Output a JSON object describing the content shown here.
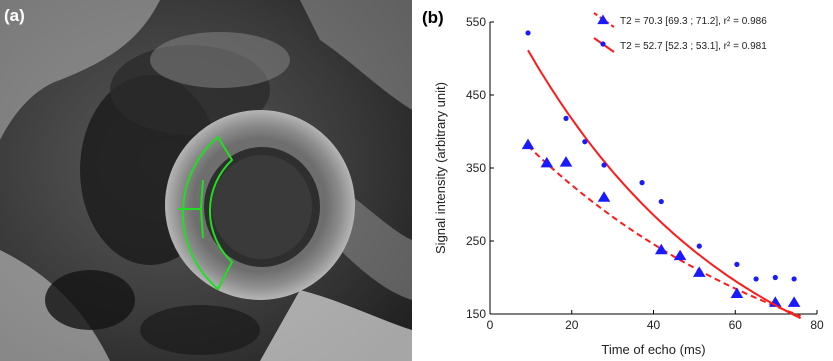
{
  "panels": {
    "a_label": "(a)",
    "b_label": "(b)"
  },
  "colors": {
    "data_points": "#1a1aff",
    "fit_lines": "#ff1a1a",
    "roi_outline": "#22dd22"
  },
  "chart_data": {
    "type": "scatter",
    "xlabel": "Time of echo (ms)",
    "ylabel": "Signal intensity (arbitrary unit)",
    "xlim": [
      0,
      80
    ],
    "ylim": [
      150,
      550
    ],
    "xticks": [
      0,
      20,
      40,
      60,
      80
    ],
    "yticks": [
      150,
      250,
      350,
      450,
      550
    ],
    "grid": false,
    "legend_position": "top-right",
    "series": [
      {
        "name": "T2 = 70.3 [69.3 ; 71.2], r² = 0.986",
        "marker": "triangle",
        "fit_style": "dashed",
        "x": [
          9.3,
          13.9,
          18.6,
          27.9,
          41.9,
          46.5,
          51.2,
          60.4,
          69.8,
          74.4
        ],
        "y": [
          382,
          357,
          358,
          310,
          238,
          230,
          207,
          178,
          166,
          166
        ],
        "fit": {
          "model": "exponential",
          "amplitude": 434,
          "T2": 70.3,
          "x_range": [
            9.3,
            76
          ]
        }
      },
      {
        "name": "T2 = 52.7 [52.3 ; 53.1], r² = 0.981",
        "marker": "dot",
        "fit_style": "solid",
        "x": [
          9.3,
          18.6,
          23.2,
          27.9,
          37.2,
          41.9,
          51.2,
          60.4,
          65.1,
          69.8,
          74.4
        ],
        "y": [
          535,
          418,
          386,
          354,
          330,
          304,
          243,
          218,
          198,
          200,
          198
        ],
        "fit": {
          "model": "exponential",
          "amplitude": 610,
          "T2": 52.7,
          "x_range": [
            9.3,
            76
          ]
        }
      }
    ]
  }
}
